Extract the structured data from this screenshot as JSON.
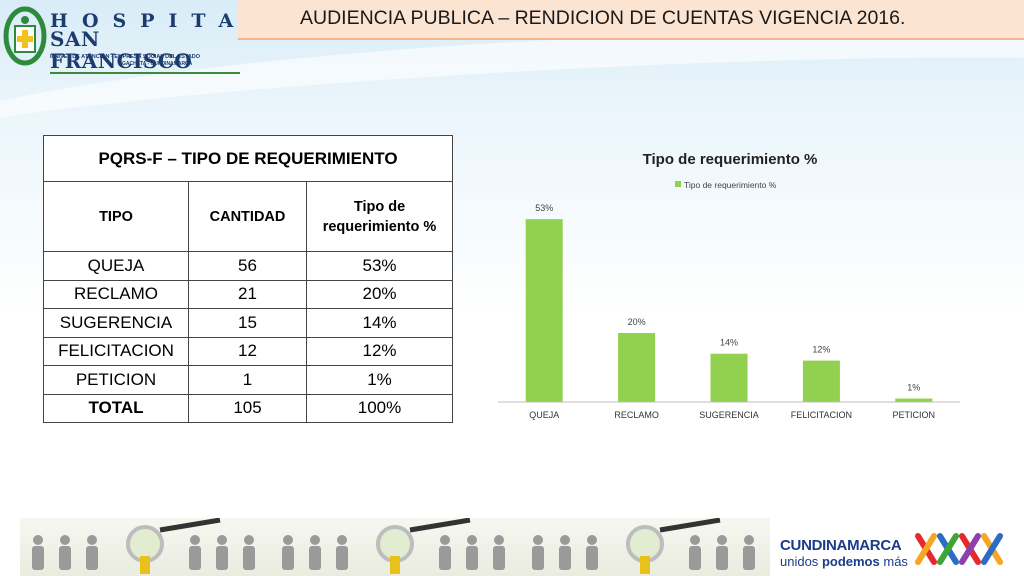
{
  "logo": {
    "line1": "HOSPITAL",
    "line2": "SAN FRANCISCO",
    "line3": "II NIVEL DE ATENCIÓN - EMPRESA SOCIAL DEL ESTADO",
    "line4": "GACHETA - CUNDINAMARCA"
  },
  "header": {
    "title": "AUDIENCIA PUBLICA – RENDICION DE CUENTAS VIGENCIA 2016."
  },
  "table": {
    "title": "PQRS-F – TIPO DE REQUERIMIENTO",
    "columns": [
      "TIPO",
      "CANTIDAD",
      "Tipo de requerimiento %"
    ],
    "rows": [
      {
        "tipo": "QUEJA",
        "cantidad": "56",
        "pct": "53%"
      },
      {
        "tipo": "RECLAMO",
        "cantidad": "21",
        "pct": "20%"
      },
      {
        "tipo": "SUGERENCIA",
        "cantidad": "15",
        "pct": "14%"
      },
      {
        "tipo": "FELICITACION",
        "cantidad": "12",
        "pct": "12%"
      },
      {
        "tipo": "PETICION",
        "cantidad": "1",
        "pct": "1%"
      }
    ],
    "total": {
      "tipo": "TOTAL",
      "cantidad": "105",
      "pct": "100%"
    }
  },
  "chart_data": {
    "type": "bar",
    "title": "Tipo de requerimiento %",
    "categories": [
      "QUEJA",
      "RECLAMO",
      "SUGERENCIA",
      "FELICITACION",
      "PETICION"
    ],
    "series": [
      {
        "name": "Tipo de requerimiento %",
        "values": [
          53,
          20,
          14,
          12,
          1
        ],
        "color": "#92d050"
      }
    ],
    "data_labels": [
      "53%",
      "20%",
      "14%",
      "12%",
      "1%"
    ],
    "ylim": [
      0,
      60
    ],
    "grid": false,
    "legend": "top-center"
  },
  "footer": {
    "gov_name": "CUNDINAMARCA",
    "slogan_prefix": "unidos",
    "slogan_bold": "podemos",
    "slogan_suffix": "más"
  }
}
